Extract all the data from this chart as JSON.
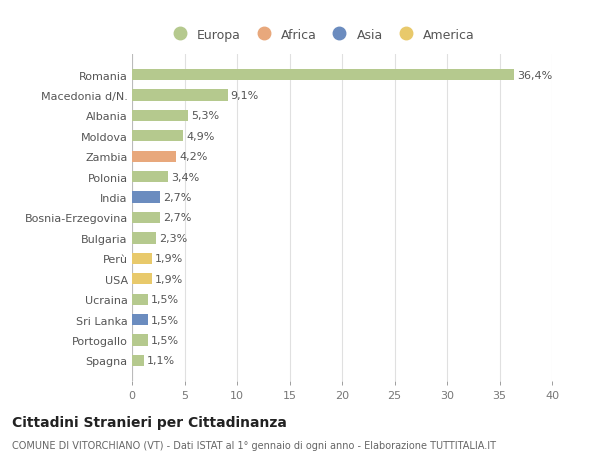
{
  "countries": [
    "Romania",
    "Macedonia d/N.",
    "Albania",
    "Moldova",
    "Zambia",
    "Polonia",
    "India",
    "Bosnia-Erzegovina",
    "Bulgaria",
    "Perù",
    "USA",
    "Ucraina",
    "Sri Lanka",
    "Portogallo",
    "Spagna"
  ],
  "values": [
    36.4,
    9.1,
    5.3,
    4.9,
    4.2,
    3.4,
    2.7,
    2.7,
    2.3,
    1.9,
    1.9,
    1.5,
    1.5,
    1.5,
    1.1
  ],
  "labels": [
    "36,4%",
    "9,1%",
    "5,3%",
    "4,9%",
    "4,2%",
    "3,4%",
    "2,7%",
    "2,7%",
    "2,3%",
    "1,9%",
    "1,9%",
    "1,5%",
    "1,5%",
    "1,5%",
    "1,1%"
  ],
  "colors": [
    "#b5c98e",
    "#b5c98e",
    "#b5c98e",
    "#b5c98e",
    "#e8a87c",
    "#b5c98e",
    "#6b8cbf",
    "#b5c98e",
    "#b5c98e",
    "#e8c96b",
    "#e8c96b",
    "#b5c98e",
    "#6b8cbf",
    "#b5c98e",
    "#b5c98e"
  ],
  "legend": [
    {
      "label": "Europa",
      "color": "#b5c98e"
    },
    {
      "label": "Africa",
      "color": "#e8a87c"
    },
    {
      "label": "Asia",
      "color": "#6b8cbf"
    },
    {
      "label": "America",
      "color": "#e8c96b"
    }
  ],
  "title": "Cittadini Stranieri per Cittadinanza",
  "subtitle": "COMUNE DI VITORCHIANO (VT) - Dati ISTAT al 1° gennaio di ogni anno - Elaborazione TUTTITALIA.IT",
  "xlim": [
    0,
    40
  ],
  "xticks": [
    0,
    5,
    10,
    15,
    20,
    25,
    30,
    35,
    40
  ],
  "bg_color": "#ffffff",
  "grid_color": "#e0e0e0",
  "bar_height": 0.55,
  "label_fontsize": 8,
  "tick_fontsize": 8,
  "title_fontsize": 10,
  "subtitle_fontsize": 7
}
